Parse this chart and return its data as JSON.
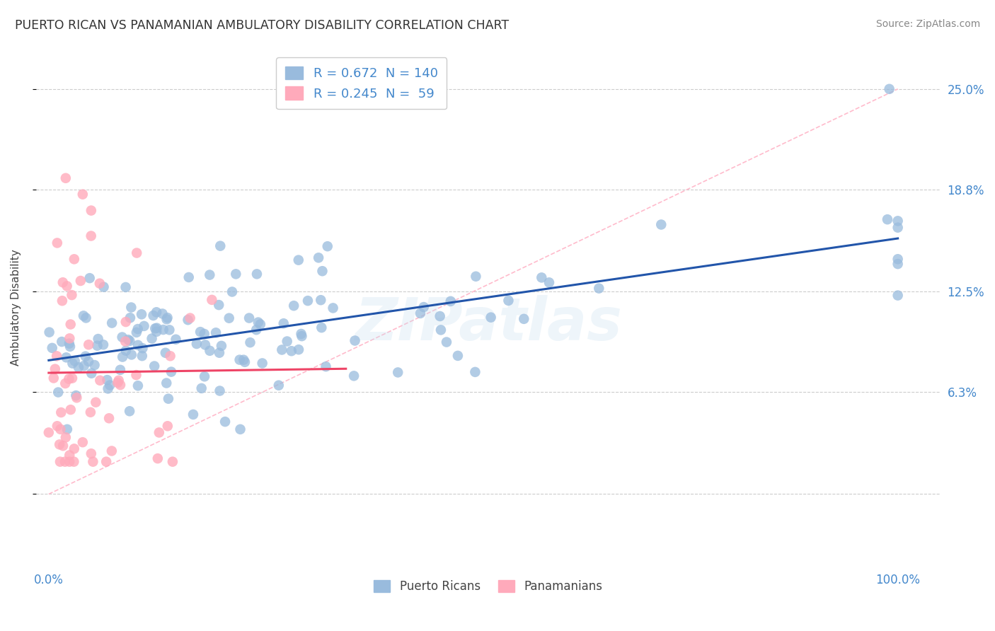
{
  "title": "PUERTO RICAN VS PANAMANIAN AMBULATORY DISABILITY CORRELATION CHART",
  "source": "Source: ZipAtlas.com",
  "ylabel": "Ambulatory Disability",
  "x_ticks": [
    0.0,
    0.25,
    0.5,
    0.75,
    1.0
  ],
  "x_tick_labels": [
    "0.0%",
    "",
    "",
    "",
    "100.0%"
  ],
  "y_ticks": [
    0.0,
    0.063,
    0.125,
    0.188,
    0.25
  ],
  "y_tick_labels": [
    "",
    "6.3%",
    "12.5%",
    "18.8%",
    "25.0%"
  ],
  "y_min": -0.045,
  "y_max": 0.275,
  "x_min": -0.015,
  "x_max": 1.05,
  "blue_color": "#2255aa",
  "pink_color": "#ee4466",
  "scatter_blue_color": "#99bbdd",
  "scatter_pink_color": "#ffaabb",
  "blue_R": 0.672,
  "blue_N": 140,
  "pink_R": 0.245,
  "pink_N": 59,
  "watermark": "ZIPatlas",
  "background_color": "#ffffff",
  "grid_color": "#cccccc",
  "title_color": "#333333",
  "axis_label_color": "#444444",
  "tick_label_color": "#4488cc",
  "legend_text_color": "#4488cc"
}
